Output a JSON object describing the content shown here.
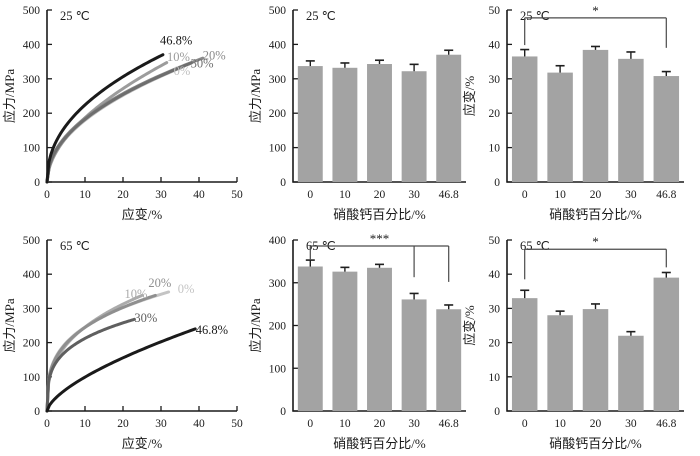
{
  "figure": {
    "description_labels": {
      "stress_axis": "应力/MPa",
      "strain_axis": "应变/%",
      "category_axis": "硝酸钙百分比/%",
      "temp_25": "25 ℃",
      "temp_65": "65 ℃"
    },
    "colors": {
      "bar_fill": "#a3a3a3",
      "axis": "#1a1a1a",
      "error_bar": "#1f1f1f",
      "significance": "#4a4a4a",
      "background": "#ffffff"
    }
  },
  "chart_data": [
    {
      "id": "curves-25c",
      "type": "line",
      "temp_label": "25 ℃",
      "xlabel": "应变/%",
      "ylabel": "应力/MPa",
      "xlim": [
        0,
        50
      ],
      "ylim": [
        0,
        500
      ],
      "xticks": [
        0,
        10,
        20,
        30,
        40,
        50
      ],
      "yticks": [
        0,
        100,
        200,
        300,
        400,
        500
      ],
      "grid": false,
      "series": [
        {
          "name": "0%",
          "color": "#bfbfbf",
          "end": [
            36,
            336
          ],
          "shape_p": 0.49,
          "label_at": [
            35.5,
            323
          ]
        },
        {
          "name": "10%",
          "color": "#9c9c9c",
          "end": [
            31.5,
            347
          ],
          "shape_p": 0.54,
          "label_at": [
            34.6,
            363
          ]
        },
        {
          "name": "20%",
          "color": "#8a8a8a",
          "end": [
            41,
            360
          ],
          "shape_p": 0.47,
          "label_at": [
            44,
            368
          ]
        },
        {
          "name": "30%",
          "color": "#6e6e6e",
          "end": [
            38,
            346
          ],
          "shape_p": 0.48,
          "label_at": [
            40.8,
            344
          ]
        },
        {
          "name": "46.8%",
          "color": "#1a1a1a",
          "end": [
            30.5,
            370
          ],
          "shape_p": 0.45,
          "label_at": [
            34,
            412
          ]
        }
      ]
    },
    {
      "id": "bars-stress-25c",
      "type": "bar",
      "temp_label": "25 ℃",
      "xlabel": "硝酸钙百分比/%",
      "ylabel": "应力/MPa",
      "categories": [
        "0",
        "10",
        "20",
        "30",
        "46.8"
      ],
      "values": [
        337,
        332,
        343,
        322,
        370
      ],
      "errors": [
        15,
        14,
        11,
        20,
        13
      ],
      "ylim": [
        0,
        500
      ],
      "yticks": [
        0,
        100,
        200,
        300,
        400,
        500
      ],
      "grid": false
    },
    {
      "id": "bars-strain-25c",
      "type": "bar",
      "temp_label": "25 ℃",
      "xlabel": "硝酸钙百分比/%",
      "ylabel": "应变/%",
      "categories": [
        "0",
        "10",
        "20",
        "30",
        "46.8"
      ],
      "values": [
        36.5,
        31.8,
        38.4,
        35.8,
        30.8
      ],
      "errors": [
        2.0,
        2.0,
        1.0,
        2.0,
        1.3
      ],
      "ylim": [
        0,
        50
      ],
      "yticks": [
        0,
        10,
        20,
        30,
        40,
        50
      ],
      "grid": false,
      "significance": {
        "label": "*",
        "bar_y": 47.7,
        "drops": [
          {
            "cat": 0,
            "to": 39.8
          },
          {
            "cat": 4,
            "to": 39.0
          }
        ],
        "label_x_cat": 2
      }
    },
    {
      "id": "curves-65c",
      "type": "line",
      "temp_label": "65 ℃",
      "xlabel": "应变/%",
      "ylabel": "应力/MPa",
      "xlim": [
        0,
        50
      ],
      "ylim": [
        0,
        500
      ],
      "xticks": [
        0,
        10,
        20,
        30,
        40,
        50
      ],
      "yticks": [
        0,
        100,
        200,
        300,
        400,
        500
      ],
      "grid": false,
      "series": [
        {
          "name": "0%",
          "color": "#c4c4c4",
          "end": [
            32,
            348
          ],
          "shape_p": 0.3,
          "label_at": [
            36.6,
            357
          ]
        },
        {
          "name": "10%",
          "color": "#ababab",
          "end": [
            25,
            338
          ],
          "shape_p": 0.35,
          "label_at": [
            23.4,
            342
          ]
        },
        {
          "name": "20%",
          "color": "#8f8f8f",
          "end": [
            28.5,
            338
          ],
          "shape_p": 0.31,
          "label_at": [
            29.7,
            374
          ]
        },
        {
          "name": "30%",
          "color": "#5f5f5f",
          "end": [
            23,
            268
          ],
          "shape_p": 0.28,
          "label_at": [
            26,
            272
          ]
        },
        {
          "name": "46.8%",
          "color": "#1a1a1a",
          "end": [
            39,
            240
          ],
          "shape_p": 0.65,
          "label_at": [
            43.4,
            237
          ]
        }
      ]
    },
    {
      "id": "bars-stress-65c",
      "type": "bar",
      "temp_label": "65 ℃",
      "xlabel": "硝酸钙百分比/%",
      "ylabel": "应力/MPa",
      "categories": [
        "0",
        "10",
        "20",
        "30",
        "46.8"
      ],
      "values": [
        338,
        326,
        335,
        261,
        238
      ],
      "errors": [
        15,
        10,
        8,
        14,
        10
      ],
      "ylim": [
        0,
        400
      ],
      "yticks": [
        0,
        100,
        200,
        300,
        400
      ],
      "grid": false,
      "significance": {
        "label": "***",
        "bar_y": 386,
        "drops": [
          {
            "cat": 0,
            "to": 355
          },
          {
            "cat": 3,
            "to": 313
          },
          {
            "cat": 4,
            "to": 302
          }
        ],
        "label_x_cat": 2
      }
    },
    {
      "id": "bars-strain-65c",
      "type": "bar",
      "temp_label": "65 ℃",
      "xlabel": "硝酸钙百分比/%",
      "ylabel": "应变/%",
      "categories": [
        "0",
        "10",
        "20",
        "30",
        "46.8"
      ],
      "values": [
        33,
        28,
        29.8,
        22,
        39
      ],
      "errors": [
        2.3,
        1.2,
        1.5,
        1.2,
        1.5
      ],
      "ylim": [
        0,
        50
      ],
      "yticks": [
        0,
        10,
        20,
        30,
        40,
        50
      ],
      "grid": false,
      "significance": {
        "label": "*",
        "bar_y": 47.3,
        "drops": [
          {
            "cat": 0,
            "to": 38.5
          },
          {
            "cat": 4,
            "to": 42
          }
        ],
        "label_x_cat": 2
      }
    }
  ]
}
